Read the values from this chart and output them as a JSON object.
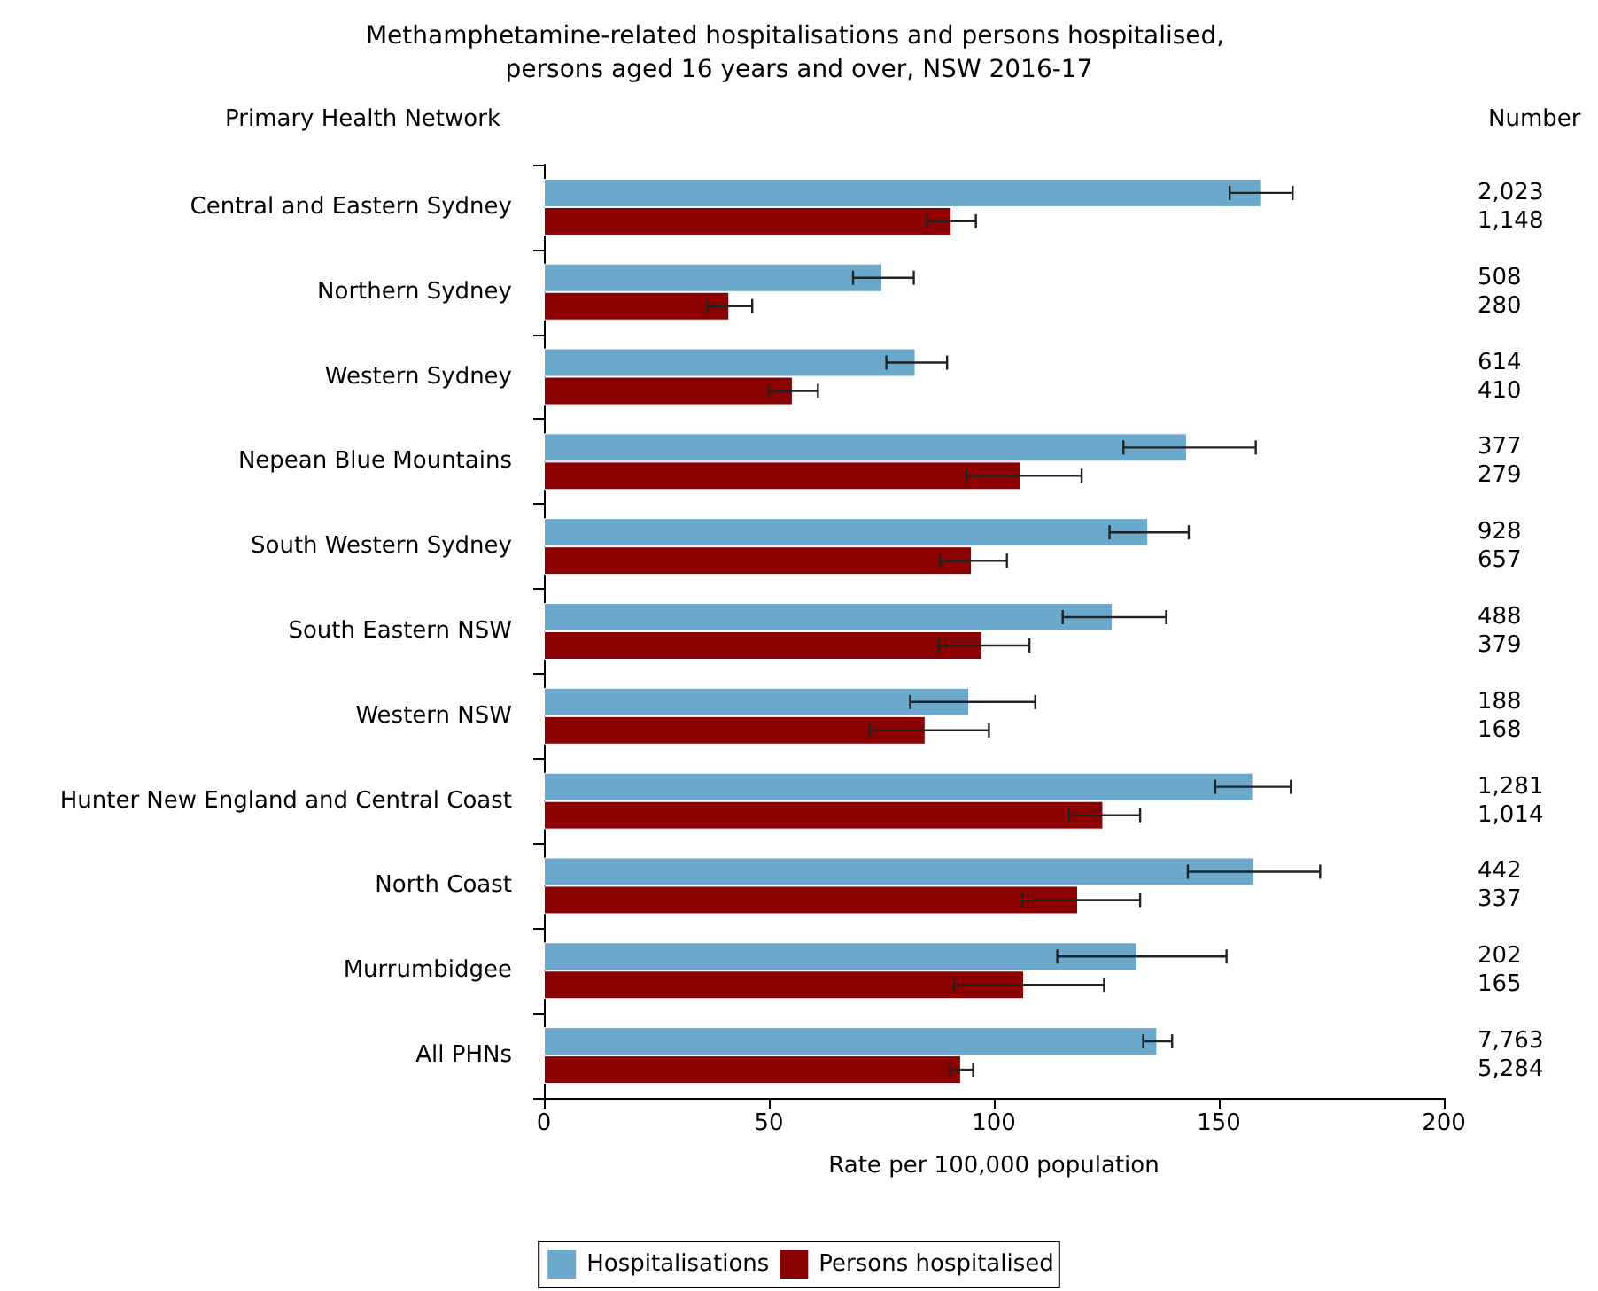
{
  "chart_data": {
    "type": "bar",
    "orientation": "horizontal",
    "title": "Methamphetamine-related hospitalisations and persons hospitalised, persons aged 16 years and over, NSW 2016-17",
    "ylabel": "Primary Health Network",
    "xlabel": "Rate per 100,000 population",
    "annotations": [
      "Number",
      "2,023",
      "1,148",
      "508",
      "280",
      "614",
      "410",
      "377",
      "279",
      "928",
      "657",
      "488",
      "379",
      "188",
      "168",
      "1,281",
      "1,014",
      "442",
      "337",
      "202",
      "165",
      "7,763",
      "5,284"
    ],
    "categories": [
      "Central and Eastern Sydney",
      "Northern Sydney",
      "Western Sydney",
      "Nepean Blue Mountains",
      "South Western Sydney",
      "South Eastern NSW",
      "Western NSW",
      "Hunter New England and Central Coast",
      "North Coast",
      "Murrumbidgee",
      "All PHNs"
    ],
    "series": [
      {
        "name": "Hospitalisations",
        "color": "#6aa9cb",
        "values": [
          159.4,
          75.2,
          82.6,
          142.9,
          134.3,
          126.4,
          94.5,
          157.6,
          157.8,
          131.9,
          136.3
        ],
        "errors": [
          [
            152.4,
            166.4
          ],
          [
            68.7,
            82.2
          ],
          [
            76.1,
            89.6
          ],
          [
            128.8,
            158.2
          ],
          [
            125.7,
            143.3
          ],
          [
            115.3,
            138.3
          ],
          [
            81.4,
            109.2
          ],
          [
            149.2,
            166.0
          ],
          [
            143.1,
            172.5
          ],
          [
            114.1,
            151.7
          ],
          [
            133.2,
            139.6
          ]
        ]
      },
      {
        "name": "Persons hospitalised",
        "color": "#8b0000",
        "values": [
          90.6,
          41.2,
          55.3,
          106.1,
          95.1,
          97.4,
          84.8,
          124.3,
          118.7,
          106.7,
          92.7
        ],
        "errors": [
          [
            85.2,
            96.0
          ],
          [
            36.4,
            46.3
          ],
          [
            50.0,
            60.9
          ],
          [
            93.9,
            119.5
          ],
          [
            88.1,
            102.9
          ],
          [
            87.7,
            107.9
          ],
          [
            72.4,
            98.9
          ],
          [
            116.7,
            132.5
          ],
          [
            106.3,
            132.5
          ],
          [
            91.0,
            124.5
          ],
          [
            90.2,
            95.4
          ]
        ]
      }
    ],
    "xlim": [
      0,
      200
    ],
    "xticks": [
      0,
      50,
      100,
      150,
      200
    ],
    "grid": false,
    "legend": "bottom"
  }
}
